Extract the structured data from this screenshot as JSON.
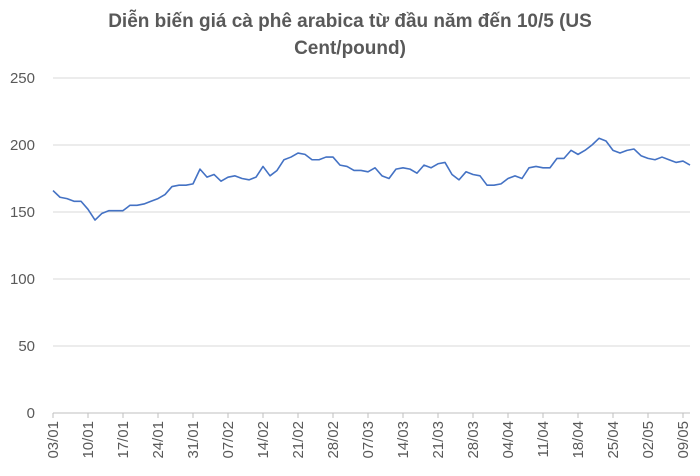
{
  "chart_data": {
    "type": "line",
    "title": "Diễn biến giá cà phê arabica từ đầu năm đến 10/5 (US Cent/pound)",
    "categories": [
      "03/01",
      null,
      null,
      null,
      null,
      "10/01",
      null,
      null,
      null,
      null,
      "17/01",
      null,
      null,
      null,
      null,
      "24/01",
      null,
      null,
      null,
      null,
      "31/01",
      null,
      null,
      null,
      null,
      "07/02",
      null,
      null,
      null,
      null,
      "14/02",
      null,
      null,
      null,
      null,
      "21/02",
      null,
      null,
      null,
      null,
      "28/02",
      null,
      null,
      null,
      null,
      "07/03",
      null,
      null,
      null,
      null,
      "14/03",
      null,
      null,
      null,
      null,
      "21/03",
      null,
      null,
      null,
      null,
      "28/03",
      null,
      null,
      null,
      null,
      "04/04",
      null,
      null,
      null,
      null,
      "11/04",
      null,
      null,
      null,
      null,
      "18/04",
      null,
      null,
      null,
      null,
      "25/04",
      null,
      null,
      null,
      null,
      "02/05",
      null,
      null,
      null,
      null,
      "09/05",
      null
    ],
    "series": [
      {
        "name": "Arabica",
        "color": "#4472c4",
        "values": [
          166,
          161,
          160,
          158,
          158,
          152,
          144,
          149,
          151,
          151,
          151,
          155,
          155,
          156,
          158,
          160,
          163,
          169,
          170,
          170,
          171,
          182,
          176,
          178,
          173,
          176,
          177,
          175,
          174,
          176,
          184,
          177,
          181,
          189,
          191,
          194,
          193,
          189,
          189,
          191,
          191,
          185,
          184,
          181,
          181,
          180,
          183,
          177,
          175,
          182,
          183,
          182,
          179,
          185,
          183,
          186,
          187,
          178,
          174,
          180,
          178,
          177,
          170,
          170,
          171,
          175,
          177,
          175,
          183,
          184,
          183,
          183,
          190,
          190,
          196,
          193,
          196,
          200,
          205,
          203,
          196,
          194,
          196,
          197,
          192,
          190,
          189,
          191,
          189,
          187,
          188,
          185
        ]
      }
    ],
    "ylim": [
      0,
      250
    ],
    "yticks": [
      0,
      50,
      100,
      150,
      200,
      250
    ],
    "grid": true
  }
}
